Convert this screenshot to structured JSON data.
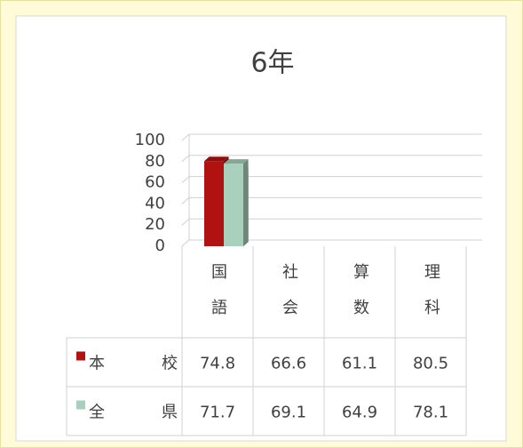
{
  "chart_data": {
    "type": "bar3d",
    "title": "6年",
    "categories": [
      "国語",
      "社会",
      "算数",
      "理科"
    ],
    "series": [
      {
        "name": "本校",
        "color": "#b01212",
        "values": [
          74.8,
          66.6,
          61.1,
          80.5
        ]
      },
      {
        "name": "全県",
        "color": "#a8d0bc",
        "values": [
          71.7,
          69.1,
          64.9,
          78.1
        ]
      }
    ],
    "ylim": [
      0,
      100
    ],
    "yticks": [
      0,
      20,
      40,
      60,
      80,
      100
    ],
    "grid": true,
    "data_table": true
  }
}
